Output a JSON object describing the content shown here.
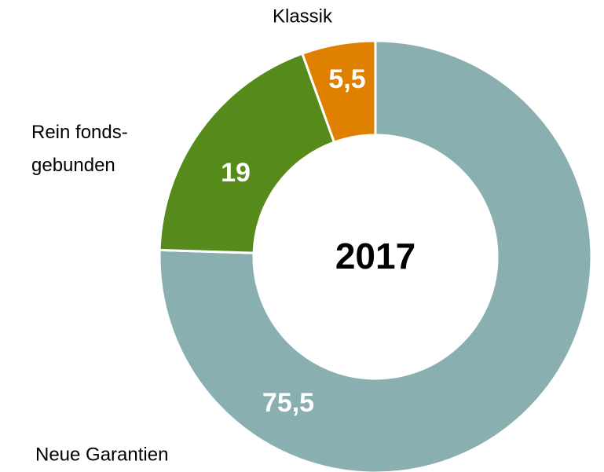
{
  "chart_data": {
    "type": "donut",
    "center_label": "2017",
    "categories": [
      "Neue Garantien",
      "Rein fonds-\ngebunden",
      "Klassik"
    ],
    "values": [
      75.5,
      19,
      5.5
    ],
    "value_labels": [
      "75,5",
      "19",
      "5,5"
    ],
    "colors": [
      "#89afb0",
      "#568a1a",
      "#e08000"
    ]
  }
}
